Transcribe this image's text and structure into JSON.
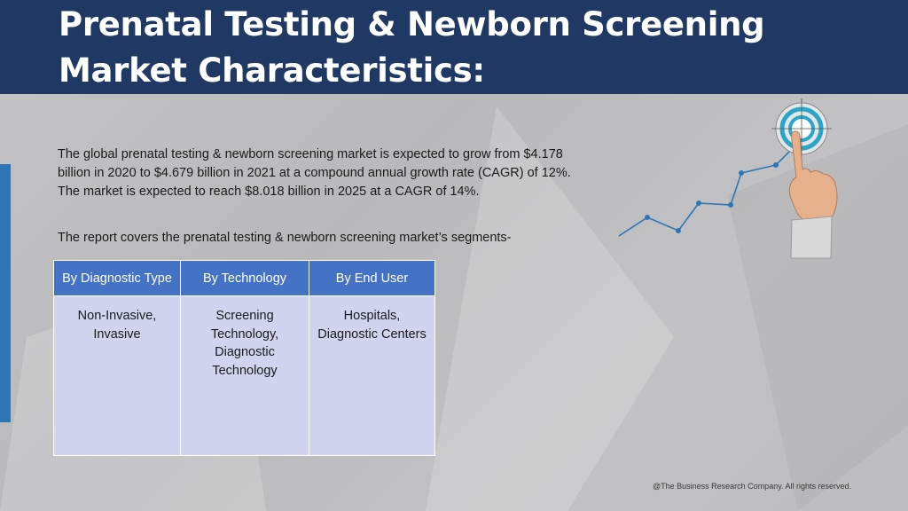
{
  "header": {
    "title": "Prenatal Testing & Newborn Screening Market Characteristics:"
  },
  "content": {
    "paragraph": "The global prenatal testing & newborn screening market is expected to grow from $4.178 billion in 2020 to $4.679 billion in 2021 at a compound annual growth rate (CAGR) of 12%. The market is expected to reach $8.018 billion in 2025 at a CAGR of 14%.",
    "segments_intro": "The report covers the prenatal testing & newborn screening market’s segments-"
  },
  "table": {
    "headers": [
      "By Diagnostic Type",
      "By Technology",
      "By End User"
    ],
    "cells": [
      "Non-Invasive, Invasive",
      "Screening Technology, Diagnostic Technology",
      "Hospitals, Diagnostic Centers"
    ]
  },
  "graphic": {
    "icon": "growth-chart-target-hand-icon",
    "line_color": "#2e75b6",
    "target_color": "#2aa6c9"
  },
  "footer": {
    "copyright": "@The Business Research Company. All rights reserved."
  },
  "colors": {
    "header_bg": "#1f3864",
    "table_header_bg": "#4472c4",
    "table_cell_bg": "#d0d4ee",
    "accent": "#2e75b6"
  }
}
